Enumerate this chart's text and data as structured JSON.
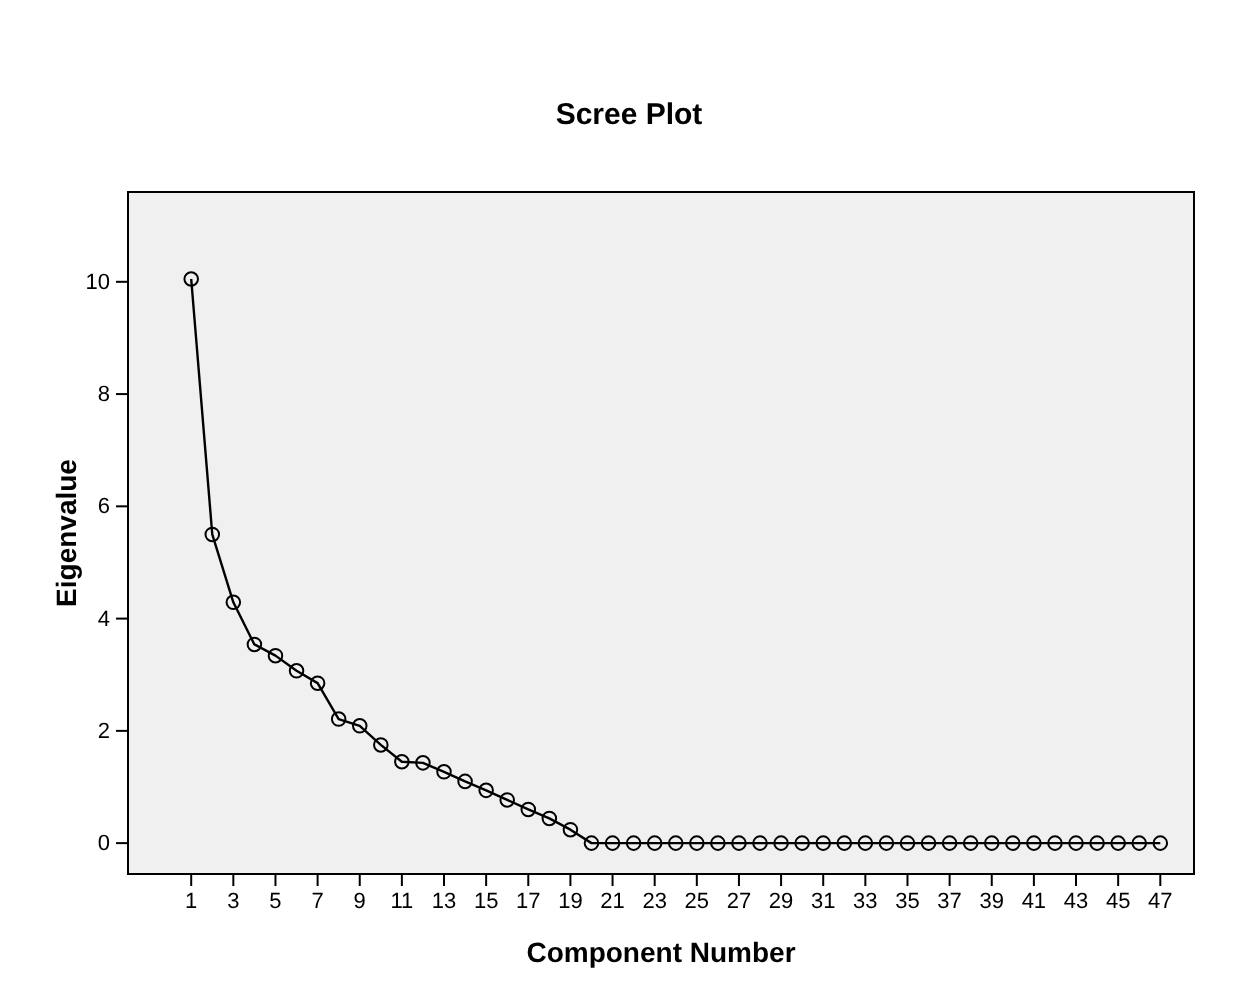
{
  "chart_data": {
    "type": "line",
    "title": "Scree Plot",
    "xlabel": "Component Number",
    "ylabel": "Eigenvalue",
    "x": [
      1,
      2,
      3,
      4,
      5,
      6,
      7,
      8,
      9,
      10,
      11,
      12,
      13,
      14,
      15,
      16,
      17,
      18,
      19,
      20,
      21,
      22,
      23,
      24,
      25,
      26,
      27,
      28,
      29,
      30,
      31,
      32,
      33,
      34,
      35,
      36,
      37,
      38,
      39,
      40,
      41,
      42,
      43,
      44,
      45,
      46,
      47
    ],
    "series": [
      {
        "color": "#000000",
        "values": [
          10.05,
          5.5,
          4.29,
          3.54,
          3.34,
          3.07,
          2.85,
          2.21,
          2.09,
          1.75,
          1.45,
          1.43,
          1.27,
          1.1,
          0.94,
          0.77,
          0.6,
          0.44,
          0.24,
          0,
          0,
          0,
          0,
          0,
          0,
          0,
          0,
          0,
          0,
          0,
          0,
          0,
          0,
          0,
          0,
          0,
          0,
          0,
          0,
          0,
          0,
          0,
          0,
          0,
          0,
          0,
          0
        ]
      }
    ],
    "xlim": [
      -2,
      48.6
    ],
    "xticks": [
      1,
      3,
      5,
      7,
      9,
      11,
      13,
      15,
      17,
      19,
      21,
      23,
      25,
      27,
      29,
      31,
      33,
      35,
      37,
      39,
      41,
      43,
      45,
      47
    ],
    "ylim": [
      -0.55,
      11.6
    ],
    "yticks": [
      0,
      2,
      4,
      6,
      8,
      10
    ],
    "grid": false,
    "marker": "circle",
    "line_style": "solid"
  }
}
